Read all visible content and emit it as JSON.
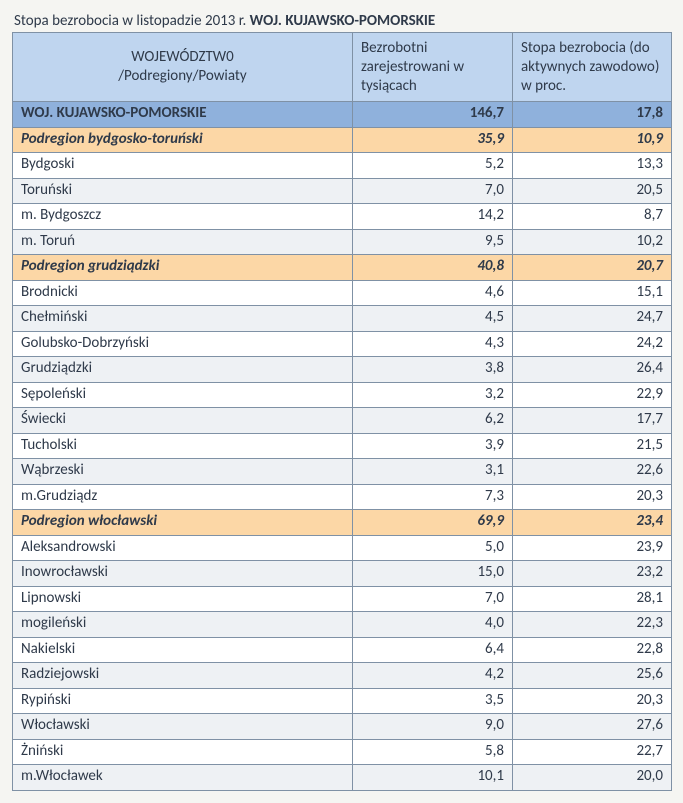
{
  "title_prefix": "Stopa bezrobocia w listopadzie 2013 r. ",
  "title_bold": "WOJ. KUJAWSKO-POMORSKIE",
  "columns": {
    "c1_line1": "WOJEWÓDZTW0",
    "c1_line2": "/Podregiony/Powiaty",
    "c2": " Bezrobotni zarejestrowani   w  tysiącach",
    "c3": " Stopa bezrobocia  (do aktywnych zawodowo) w  proc."
  },
  "colors": {
    "header_bg": "#bfd5ef",
    "voiv_bg": "#8fb1dc",
    "sub_bg": "#fcd7a6",
    "row_alt_bg": "#eef1f4",
    "border": "#7f91a5",
    "text": "#2f3a4a"
  },
  "rows": [
    {
      "type": "voiv",
      "label": "WOJ. KUJAWSKO-POMORSKIE",
      "v1": "146,7",
      "v2": "17,8"
    },
    {
      "type": "sub",
      "label": "Podregion bydgosko-toruński",
      "v1": "35,9",
      "v2": "10,9"
    },
    {
      "type": "data",
      "label": "Bydgoski",
      "v1": "5,2",
      "v2": "13,3"
    },
    {
      "type": "data",
      "label": "Toruński",
      "v1": "7,0",
      "v2": "20,5"
    },
    {
      "type": "data",
      "label": "m. Bydgoszcz",
      "v1": "14,2",
      "v2": "8,7"
    },
    {
      "type": "data",
      "label": "m. Toruń",
      "v1": "9,5",
      "v2": "10,2"
    },
    {
      "type": "sub",
      "label": "Podregion grudziądzki",
      "v1": "40,8",
      "v2": "20,7"
    },
    {
      "type": "data",
      "label": "Brodnicki",
      "v1": "4,6",
      "v2": "15,1"
    },
    {
      "type": "data",
      "label": "Chełmiński",
      "v1": "4,5",
      "v2": "24,7"
    },
    {
      "type": "data",
      "label": "Golubsko-Dobrzyński",
      "v1": "4,3",
      "v2": "24,2"
    },
    {
      "type": "data",
      "label": "Grudziądzki",
      "v1": "3,8",
      "v2": "26,4"
    },
    {
      "type": "data",
      "label": "Sępoleński",
      "v1": "3,2",
      "v2": "22,9"
    },
    {
      "type": "data",
      "label": "Świecki",
      "v1": "6,2",
      "v2": "17,7"
    },
    {
      "type": "data",
      "label": "Tucholski",
      "v1": "3,9",
      "v2": "21,5"
    },
    {
      "type": "data",
      "label": "Wąbrzeski",
      "v1": "3,1",
      "v2": "22,6"
    },
    {
      "type": "data",
      "label": "m.Grudziądz",
      "v1": "7,3",
      "v2": "20,3"
    },
    {
      "type": "sub",
      "label": "Podregion włocławski",
      "v1": "69,9",
      "v2": "23,4"
    },
    {
      "type": "data",
      "label": "Aleksandrowski",
      "v1": "5,0",
      "v2": "23,9"
    },
    {
      "type": "data",
      "label": "Inowrocławski",
      "v1": "15,0",
      "v2": "23,2"
    },
    {
      "type": "data",
      "label": "Lipnowski",
      "v1": "7,0",
      "v2": "28,1"
    },
    {
      "type": "data",
      "label": "mogileński",
      "v1": "4,0",
      "v2": "22,3"
    },
    {
      "type": "data",
      "label": "Nakielski",
      "v1": "6,4",
      "v2": "22,8"
    },
    {
      "type": "data",
      "label": "Radziejowski",
      "v1": "4,2",
      "v2": "25,6"
    },
    {
      "type": "data",
      "label": "Rypiński",
      "v1": "3,5",
      "v2": "20,3"
    },
    {
      "type": "data",
      "label": "Włocławski",
      "v1": "9,0",
      "v2": "27,6"
    },
    {
      "type": "data",
      "label": "Żniński",
      "v1": "5,8",
      "v2": "22,7"
    },
    {
      "type": "data",
      "label": "m.Włocławek",
      "v1": "10,1",
      "v2": "20,0"
    }
  ]
}
